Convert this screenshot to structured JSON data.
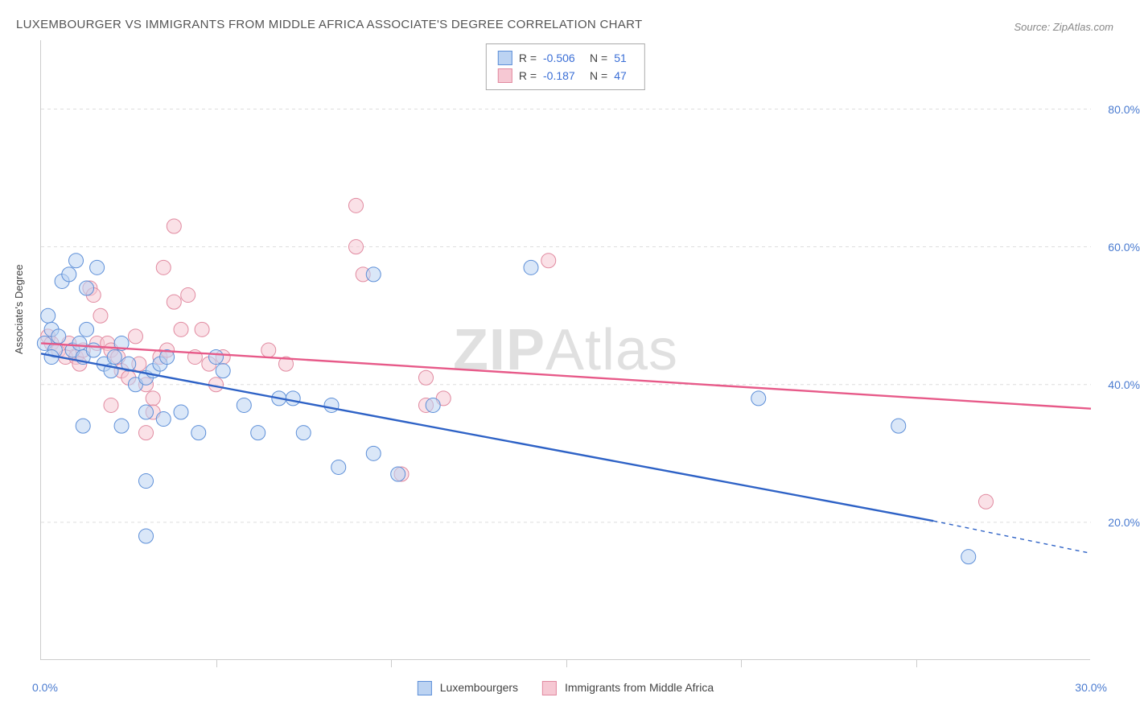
{
  "title": "LUXEMBOURGER VS IMMIGRANTS FROM MIDDLE AFRICA ASSOCIATE'S DEGREE CORRELATION CHART",
  "source": "Source: ZipAtlas.com",
  "watermark_pre": "ZIP",
  "watermark_post": "Atlas",
  "chart": {
    "type": "scatter",
    "background_color": "#ffffff",
    "grid_color": "#dddddd",
    "axis_color": "#cccccc",
    "xlim": [
      0,
      30
    ],
    "ylim": [
      0,
      90
    ],
    "x_tick_every": 5,
    "x_min_label": "0.0%",
    "x_max_label": "30.0%",
    "y_ticks": [
      20,
      40,
      60,
      80
    ],
    "y_tick_labels": [
      "20.0%",
      "40.0%",
      "60.0%",
      "80.0%"
    ],
    "ylabel": "Associate's Degree",
    "ylabel_fontsize": 13,
    "title_fontsize": 15,
    "tick_label_color": "#4a7bd0",
    "marker_radius": 9,
    "marker_opacity": 0.55,
    "marker_stroke_width": 1,
    "line_width": 2.4
  },
  "series_a": {
    "name": "Luxembourgers",
    "fill": "#bcd3f2",
    "stroke": "#5d8fd8",
    "line_color": "#2e62c6",
    "R_label": "R =",
    "R": "-0.506",
    "N_label": "N =",
    "N": "51",
    "reg_start": [
      0,
      44.5
    ],
    "reg_end_solid": [
      25.5,
      20.2
    ],
    "reg_end_dashed": [
      30,
      15.5
    ],
    "points": [
      [
        0.2,
        50
      ],
      [
        0.3,
        48
      ],
      [
        0.1,
        46
      ],
      [
        0.4,
        45
      ],
      [
        0.3,
        44
      ],
      [
        0.5,
        47
      ],
      [
        0.6,
        55
      ],
      [
        0.8,
        56
      ],
      [
        1.0,
        58
      ],
      [
        1.3,
        54
      ],
      [
        1.6,
        57
      ],
      [
        0.9,
        45
      ],
      [
        1.1,
        46
      ],
      [
        1.2,
        44
      ],
      [
        1.3,
        48
      ],
      [
        1.5,
        45
      ],
      [
        1.8,
        43
      ],
      [
        2.0,
        42
      ],
      [
        2.1,
        44
      ],
      [
        2.3,
        46
      ],
      [
        2.5,
        43
      ],
      [
        2.7,
        40
      ],
      [
        3.0,
        41
      ],
      [
        3.2,
        42
      ],
      [
        3.4,
        43
      ],
      [
        3.6,
        44
      ],
      [
        1.2,
        34
      ],
      [
        2.3,
        34
      ],
      [
        3.0,
        26
      ],
      [
        3.0,
        18
      ],
      [
        3.0,
        36
      ],
      [
        3.5,
        35
      ],
      [
        4.0,
        36
      ],
      [
        4.5,
        33
      ],
      [
        5.0,
        44
      ],
      [
        5.2,
        42
      ],
      [
        5.8,
        37
      ],
      [
        6.2,
        33
      ],
      [
        6.8,
        38
      ],
      [
        7.2,
        38
      ],
      [
        7.5,
        33
      ],
      [
        8.3,
        37
      ],
      [
        8.5,
        28
      ],
      [
        9.5,
        30
      ],
      [
        9.5,
        56
      ],
      [
        10.2,
        27
      ],
      [
        11.2,
        37
      ],
      [
        14.0,
        57
      ],
      [
        20.5,
        38
      ],
      [
        24.5,
        34
      ],
      [
        26.5,
        15
      ]
    ]
  },
  "series_b": {
    "name": "Immigrants from Middle Africa",
    "fill": "#f6c8d3",
    "stroke": "#e18aa0",
    "line_color": "#e75a89",
    "R_label": "R =",
    "R": "-0.187",
    "N_label": "N =",
    "N": "47",
    "reg_start": [
      0,
      46
    ],
    "reg_end": [
      30,
      36.5
    ],
    "points": [
      [
        0.2,
        47
      ],
      [
        0.3,
        46
      ],
      [
        0.5,
        45
      ],
      [
        0.7,
        44
      ],
      [
        0.8,
        46
      ],
      [
        1.0,
        44
      ],
      [
        1.1,
        43
      ],
      [
        1.2,
        45
      ],
      [
        1.4,
        54
      ],
      [
        1.5,
        53
      ],
      [
        1.6,
        46
      ],
      [
        1.7,
        50
      ],
      [
        1.9,
        46
      ],
      [
        2.0,
        45
      ],
      [
        2.2,
        44
      ],
      [
        2.3,
        42
      ],
      [
        2.5,
        41
      ],
      [
        2.7,
        47
      ],
      [
        2.8,
        43
      ],
      [
        3.0,
        40
      ],
      [
        3.2,
        38
      ],
      [
        3.4,
        44
      ],
      [
        3.5,
        57
      ],
      [
        3.6,
        45
      ],
      [
        3.8,
        52
      ],
      [
        3.8,
        63
      ],
      [
        4.0,
        48
      ],
      [
        4.2,
        53
      ],
      [
        4.4,
        44
      ],
      [
        4.6,
        48
      ],
      [
        4.8,
        43
      ],
      [
        5.0,
        40
      ],
      [
        5.2,
        44
      ],
      [
        6.5,
        45
      ],
      [
        7.0,
        43
      ],
      [
        3.0,
        33
      ],
      [
        3.2,
        36
      ],
      [
        2.0,
        37
      ],
      [
        9.0,
        66
      ],
      [
        9.2,
        56
      ],
      [
        9.0,
        60
      ],
      [
        10.3,
        27
      ],
      [
        11.0,
        41
      ],
      [
        11.0,
        37
      ],
      [
        11.5,
        38
      ],
      [
        14.5,
        58
      ],
      [
        27.0,
        23
      ]
    ]
  },
  "bottom_legend": {
    "a_label": "Luxembourgers",
    "b_label": "Immigrants from Middle Africa"
  }
}
